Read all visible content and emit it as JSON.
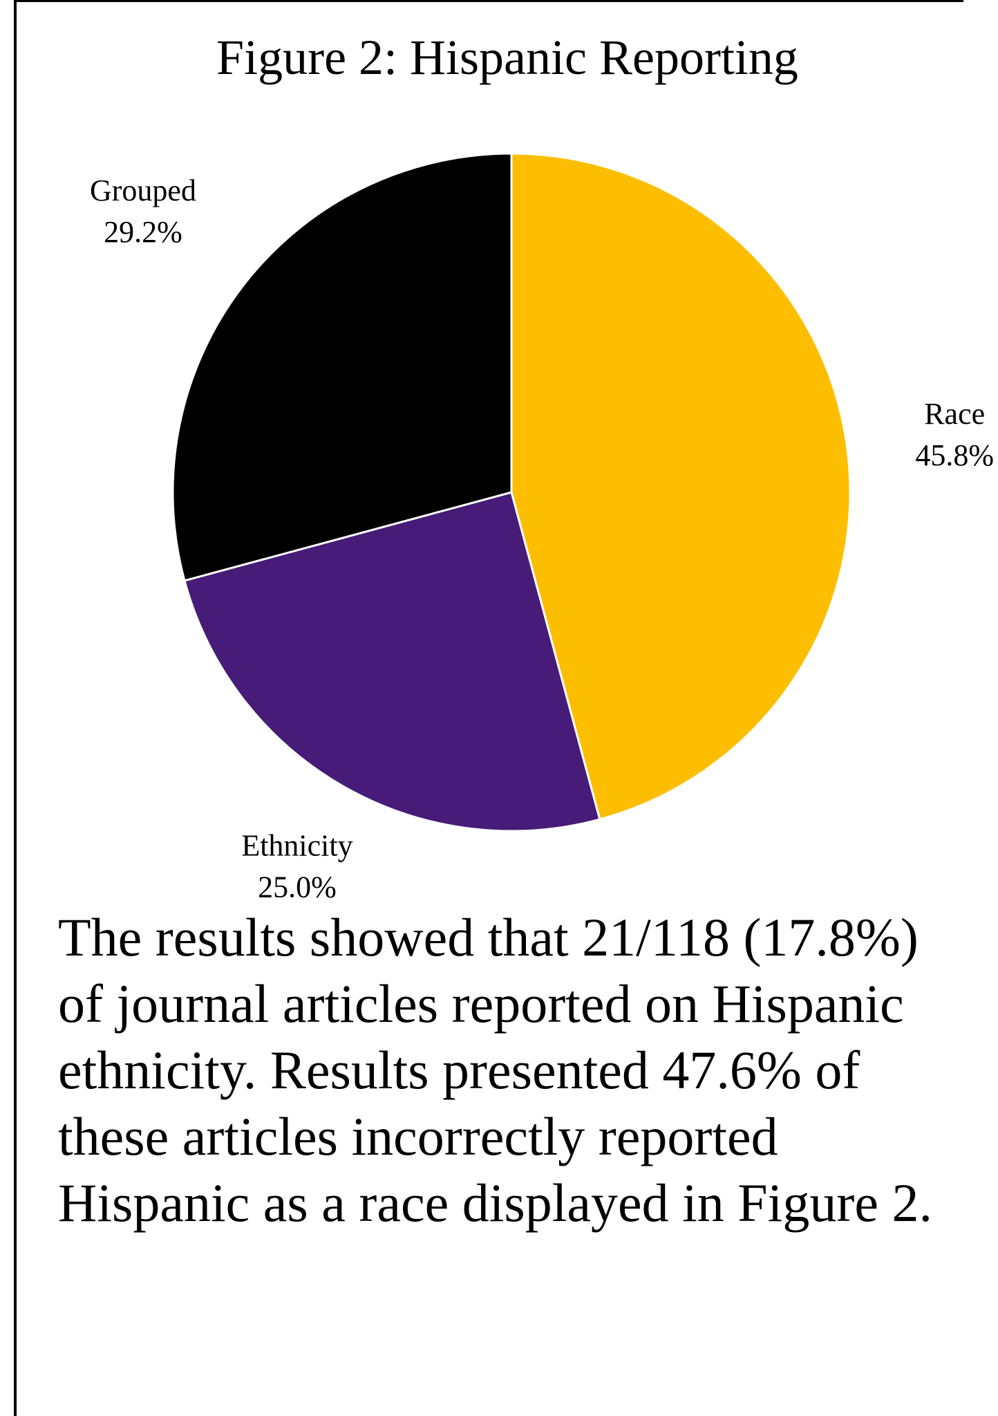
{
  "chart_data": {
    "type": "pie",
    "title": "Figure 2: Hispanic Reporting",
    "categories": [
      "Race",
      "Ethnicity",
      "Grouped"
    ],
    "values": [
      45.8,
      25.0,
      29.2
    ],
    "labels": [
      "45.8%",
      "25.0%",
      "29.2%"
    ],
    "colors": [
      "#FDBE00",
      "#471C78",
      "#000000"
    ],
    "slice_border_color": "#FFFFFF",
    "start": "12 o'clock",
    "direction": "clockwise",
    "legend": "none (slice labels)"
  },
  "caption": {
    "lines": [
      "The results showed that 21/118 (17.8%)",
      "of journal articles reported on Hispanic",
      "ethnicity. Results presented 47.6% of",
      "these articles incorrectly reported",
      "Hispanic as a race displayed in Figure 2."
    ]
  }
}
